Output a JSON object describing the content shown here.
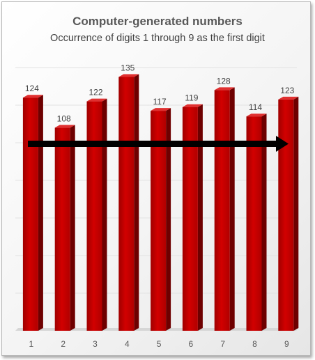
{
  "chart_data": {
    "type": "bar",
    "title": "Computer-generated numbers",
    "subtitle": "Occurrence of digits 1 through 9 as the first digit",
    "categories": [
      "1",
      "2",
      "3",
      "4",
      "5",
      "6",
      "7",
      "8",
      "9"
    ],
    "values": [
      124,
      108,
      122,
      135,
      117,
      119,
      128,
      114,
      123
    ],
    "data_labels": [
      "124",
      "108",
      "122",
      "135",
      "117",
      "119",
      "128",
      "114",
      "123"
    ],
    "ylim": [
      0,
      140
    ],
    "grid": true,
    "legend": "none",
    "bar_color": "#c00000",
    "annotation": "arrow"
  }
}
